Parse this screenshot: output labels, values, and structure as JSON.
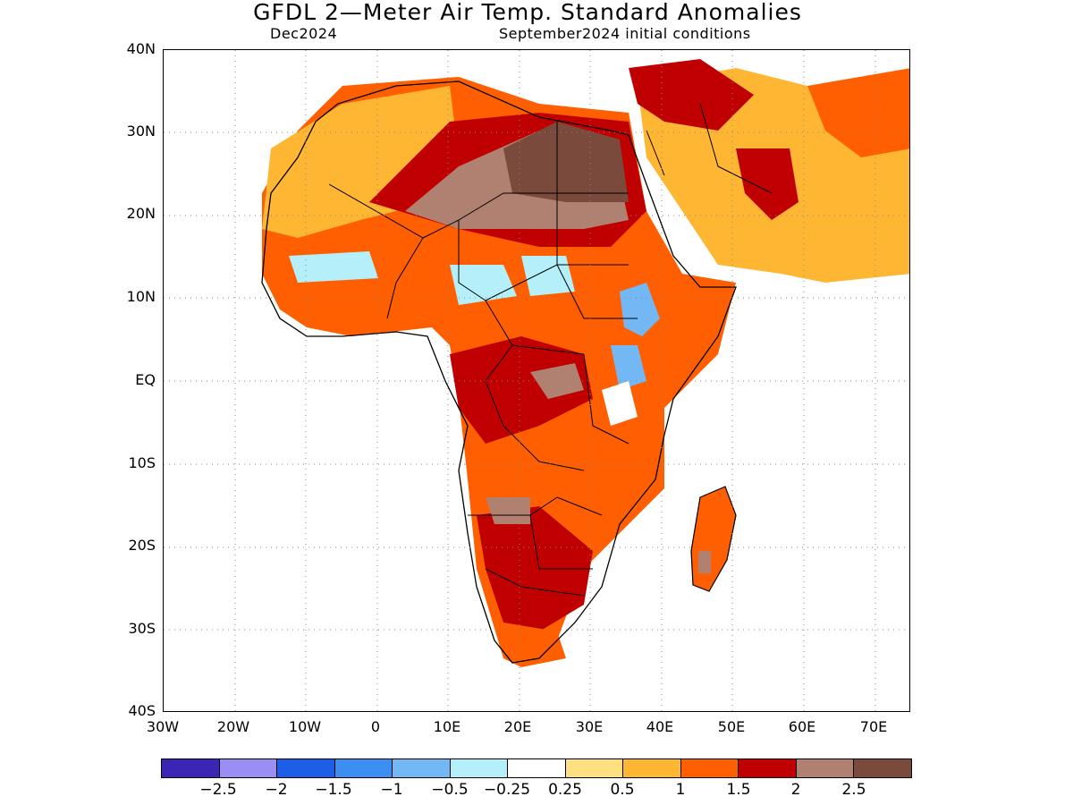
{
  "header": {
    "title": "GFDL 2—Meter Air Temp. Standard Anomalies",
    "valid_month": "Dec2024",
    "initial_conditions": "September2024 initial conditions"
  },
  "axes": {
    "lat_labels": [
      "40N",
      "30N",
      "20N",
      "10N",
      "EQ",
      "10S",
      "20S",
      "30S",
      "40S"
    ],
    "lon_labels": [
      "30W",
      "20W",
      "10W",
      "0",
      "10E",
      "20E",
      "30E",
      "40E",
      "50E",
      "60E",
      "70E"
    ],
    "lat_range": [
      -40,
      40
    ],
    "lon_range": [
      -30,
      75
    ]
  },
  "colorbar": {
    "colors": [
      "#3b25b4",
      "#9a8ef5",
      "#1c5fe6",
      "#3a8ff0",
      "#73b8f5",
      "#b4effa",
      "#ffffff",
      "#ffe080",
      "#ffb733",
      "#ff5f00",
      "#c00000",
      "#b08070",
      "#7a4a3c"
    ],
    "labels": [
      "−2.5",
      "−2",
      "−1.5",
      "−1",
      "−0.5",
      "−0.25",
      "0.25",
      "0.5",
      "1",
      "1.5",
      "2",
      "2.5"
    ]
  }
}
